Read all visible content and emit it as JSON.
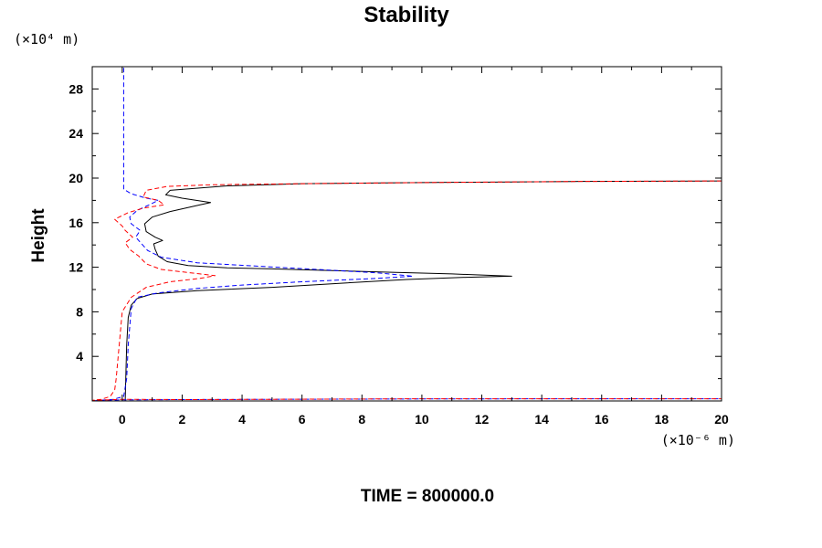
{
  "chart_data": {
    "type": "line",
    "title": "Stability",
    "ylabel": "Height",
    "xlabel": "",
    "x_unit_label": "(×10⁻⁶ m)",
    "y_unit_label": "(×10⁴ m)",
    "footer": "TIME = 800000.0",
    "xlim": [
      -1,
      20
    ],
    "ylim": [
      0,
      30
    ],
    "x_ticks": [
      0,
      2,
      4,
      6,
      8,
      10,
      12,
      14,
      16,
      18,
      20
    ],
    "y_ticks": [
      4,
      8,
      12,
      16,
      20,
      24,
      28
    ],
    "grid": false,
    "series": [
      {
        "color": "#000000",
        "dash": "solid",
        "points": [
          [
            0.1,
            0.0
          ],
          [
            0.12,
            2.0
          ],
          [
            0.15,
            5.0
          ],
          [
            0.2,
            7.5
          ],
          [
            0.3,
            8.6
          ],
          [
            0.5,
            9.2
          ],
          [
            1.0,
            9.6
          ],
          [
            2.5,
            9.9
          ],
          [
            5.0,
            10.2
          ],
          [
            7.5,
            10.6
          ],
          [
            9.5,
            10.9
          ],
          [
            11.5,
            11.1
          ],
          [
            13.0,
            11.2
          ],
          [
            11.0,
            11.4
          ],
          [
            9.0,
            11.55
          ],
          [
            7.0,
            11.7
          ],
          [
            5.0,
            11.85
          ],
          [
            3.5,
            11.95
          ],
          [
            2.2,
            12.15
          ],
          [
            1.5,
            12.5
          ],
          [
            1.2,
            13.0
          ],
          [
            1.1,
            13.6
          ],
          [
            1.05,
            14.1
          ],
          [
            1.35,
            14.4
          ],
          [
            1.1,
            14.7
          ],
          [
            0.8,
            15.2
          ],
          [
            0.75,
            15.9
          ],
          [
            1.0,
            16.5
          ],
          [
            1.6,
            17.0
          ],
          [
            2.6,
            17.6
          ],
          [
            2.95,
            17.8
          ],
          [
            2.0,
            18.2
          ],
          [
            1.45,
            18.5
          ],
          [
            1.6,
            18.9
          ],
          [
            3.5,
            19.3
          ],
          [
            6.0,
            19.5
          ],
          [
            10.0,
            19.6
          ],
          [
            15.0,
            19.7
          ],
          [
            20.0,
            19.75
          ]
        ]
      },
      {
        "color": "#0000ff",
        "dash": "dashed",
        "points": [
          [
            0.05,
            29.9
          ],
          [
            0.05,
            26.0
          ],
          [
            0.05,
            22.0
          ],
          [
            0.05,
            19.0
          ],
          [
            0.3,
            18.6
          ],
          [
            0.8,
            18.2
          ],
          [
            1.2,
            18.0
          ],
          [
            0.9,
            17.6
          ],
          [
            0.5,
            17.1
          ],
          [
            0.25,
            16.5
          ],
          [
            0.3,
            15.9
          ],
          [
            0.6,
            15.3
          ],
          [
            0.45,
            14.7
          ],
          [
            0.65,
            14.1
          ],
          [
            0.85,
            13.5
          ],
          [
            1.3,
            12.9
          ],
          [
            2.5,
            12.4
          ],
          [
            4.5,
            12.1
          ],
          [
            6.5,
            11.8
          ],
          [
            8.5,
            11.5
          ],
          [
            9.7,
            11.2
          ],
          [
            8.5,
            11.0
          ],
          [
            6.0,
            10.7
          ],
          [
            4.0,
            10.4
          ],
          [
            2.5,
            10.1
          ],
          [
            1.2,
            9.7
          ],
          [
            0.5,
            9.3
          ],
          [
            0.3,
            8.3
          ],
          [
            0.2,
            5.0
          ],
          [
            0.15,
            2.0
          ],
          [
            0.05,
            0.4
          ],
          [
            -0.3,
            0.15
          ],
          [
            -1.0,
            0.0
          ],
          [
            0.0,
            0.1
          ],
          [
            2.0,
            0.12
          ],
          [
            5.0,
            0.15
          ],
          [
            10.0,
            0.18
          ],
          [
            15.0,
            0.2
          ],
          [
            20.0,
            0.2
          ]
        ]
      },
      {
        "color": "#ff0000",
        "dash": "dashed",
        "points": [
          [
            20.0,
            19.75
          ],
          [
            15.0,
            19.7
          ],
          [
            10.0,
            19.6
          ],
          [
            6.0,
            19.5
          ],
          [
            3.0,
            19.4
          ],
          [
            1.5,
            19.25
          ],
          [
            0.8,
            18.9
          ],
          [
            0.7,
            18.3
          ],
          [
            1.2,
            18.0
          ],
          [
            1.4,
            17.6
          ],
          [
            0.7,
            17.3
          ],
          [
            0.2,
            16.9
          ],
          [
            -0.25,
            16.3
          ],
          [
            0.0,
            15.7
          ],
          [
            0.1,
            15.3
          ],
          [
            0.35,
            14.7
          ],
          [
            0.1,
            14.2
          ],
          [
            0.25,
            13.6
          ],
          [
            0.55,
            13.0
          ],
          [
            0.8,
            12.3
          ],
          [
            1.3,
            11.8
          ],
          [
            2.6,
            11.4
          ],
          [
            3.1,
            11.25
          ],
          [
            2.6,
            11.0
          ],
          [
            1.6,
            10.7
          ],
          [
            0.8,
            10.2
          ],
          [
            0.3,
            9.3
          ],
          [
            0.0,
            8.0
          ],
          [
            -0.1,
            5.0
          ],
          [
            -0.2,
            2.0
          ],
          [
            -0.25,
            1.0
          ],
          [
            -0.4,
            0.4
          ],
          [
            -0.7,
            0.15
          ],
          [
            -1.0,
            0.05
          ],
          [
            0.0,
            0.15
          ],
          [
            2.0,
            0.12
          ],
          [
            5.0,
            0.15
          ],
          [
            10.0,
            0.2
          ],
          [
            15.0,
            0.2
          ],
          [
            20.0,
            0.2
          ]
        ]
      }
    ]
  }
}
